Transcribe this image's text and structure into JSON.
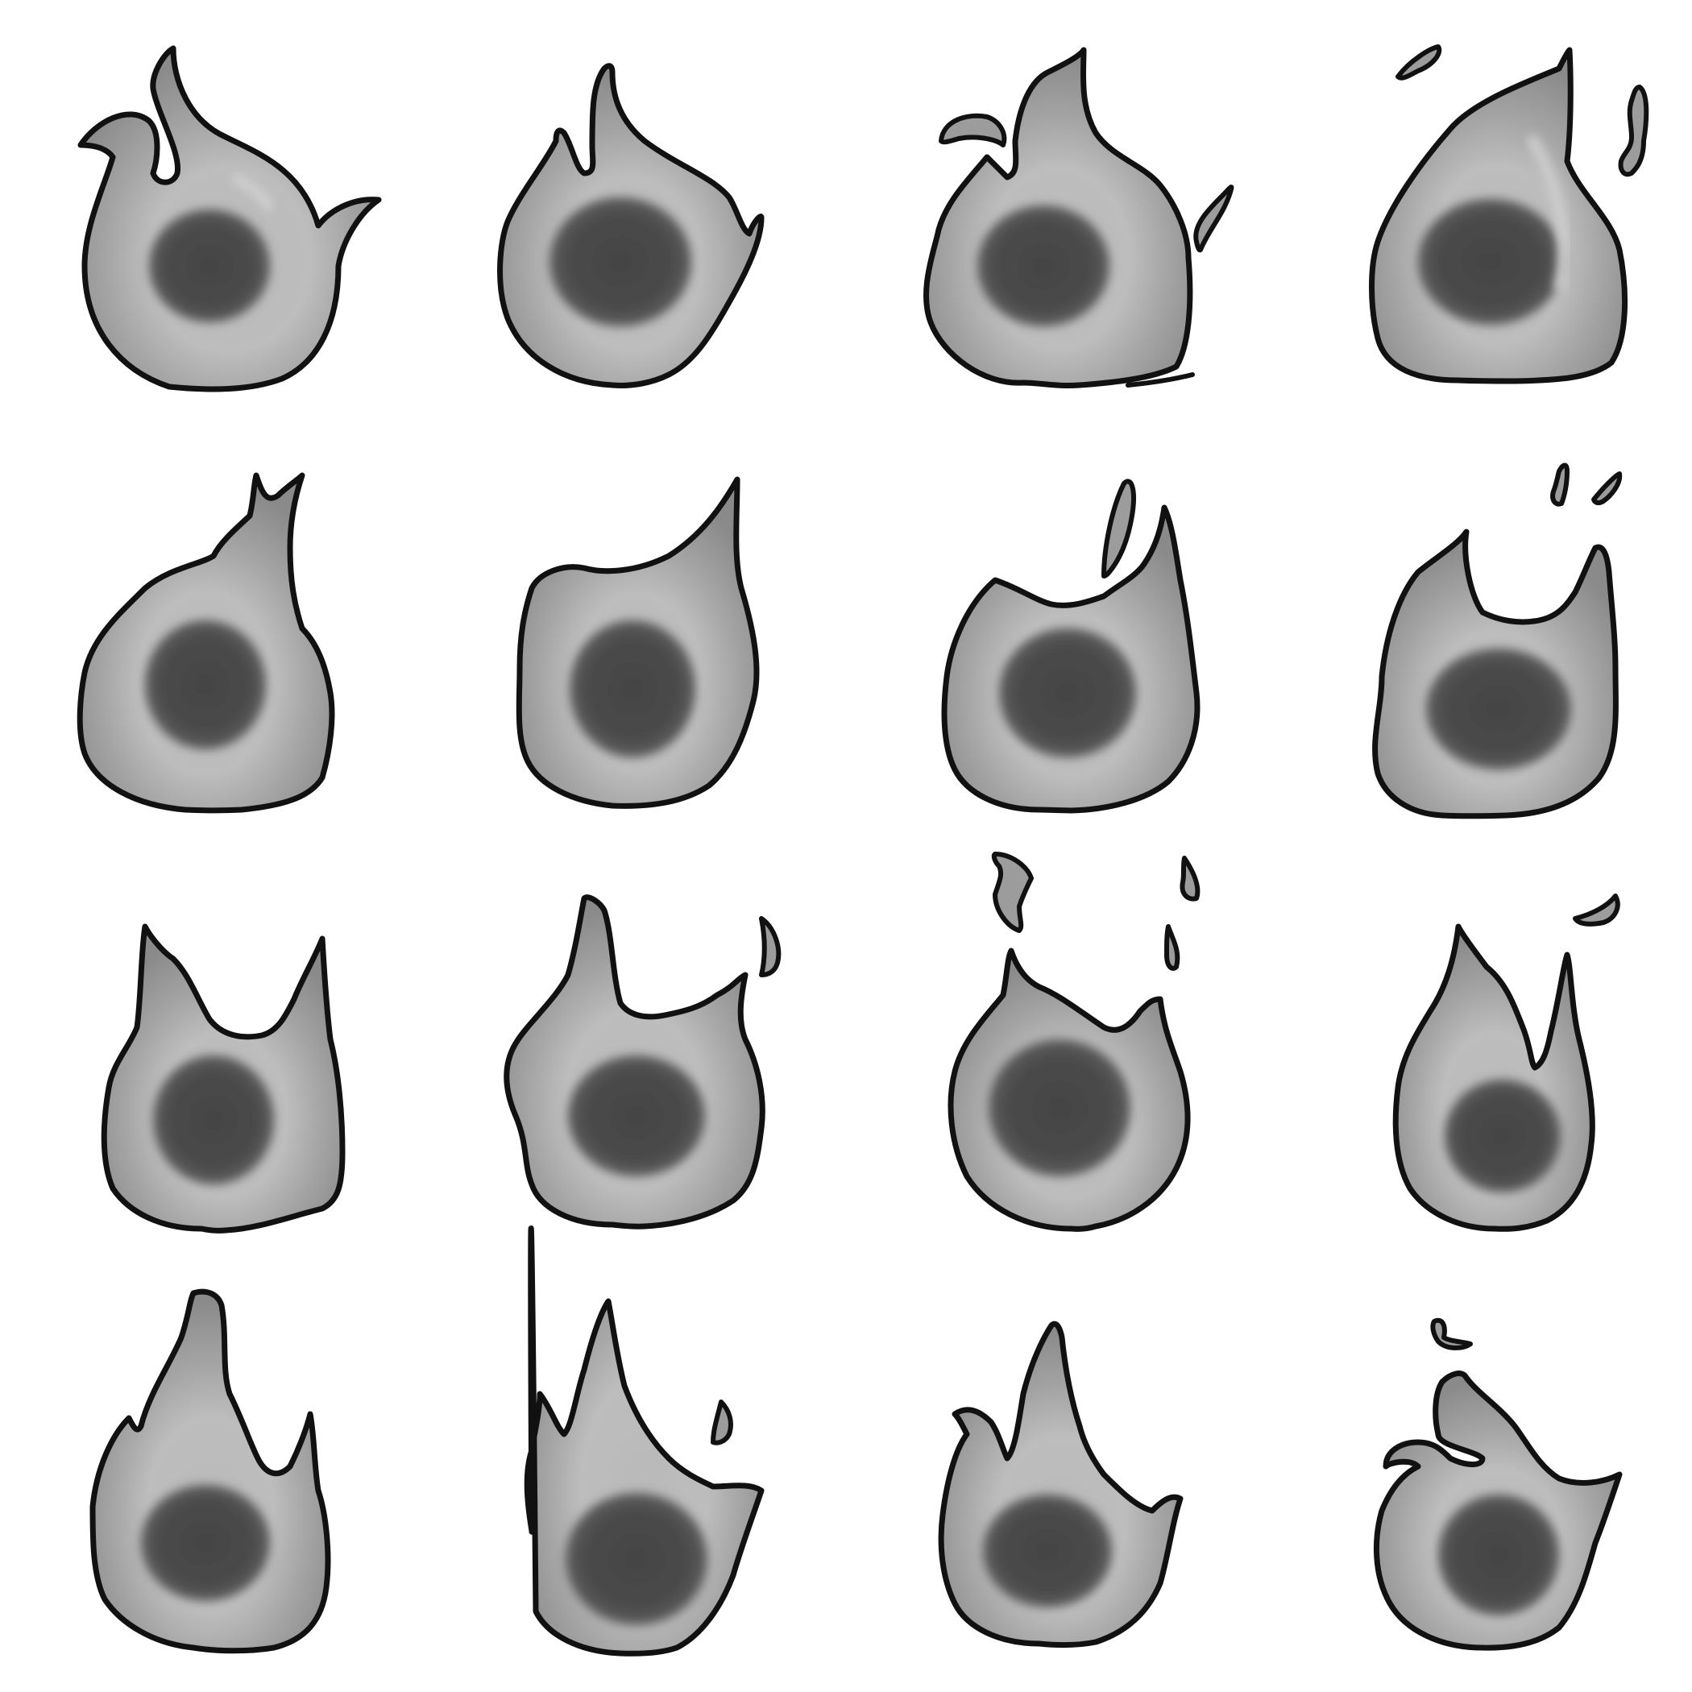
{
  "sprite_sheet": {
    "rows": 4,
    "columns": 4,
    "colors": {
      "background": "#ffffff",
      "outline": "#111111",
      "flame_base": "#9a9a9a",
      "flame_highlight": "#c4c4c4",
      "flame_shadow": "#7e7e7e",
      "core": "#474747"
    },
    "frames": [
      {
        "row": 1,
        "col": 1,
        "variant": "flame-with-left-curl"
      },
      {
        "row": 1,
        "col": 2,
        "variant": "flame-single-tip"
      },
      {
        "row": 1,
        "col": 3,
        "variant": "flame-with-embers"
      },
      {
        "row": 1,
        "col": 4,
        "variant": "flame-teardrop-with-embers"
      },
      {
        "row": 2,
        "col": 1,
        "variant": "flame-leaning-right"
      },
      {
        "row": 2,
        "col": 2,
        "variant": "flame-hooked-right"
      },
      {
        "row": 2,
        "col": 3,
        "variant": "flame-with-falling-shard"
      },
      {
        "row": 2,
        "col": 4,
        "variant": "flame-two-horns-with-embers"
      },
      {
        "row": 3,
        "col": 1,
        "variant": "flame-two-horns"
      },
      {
        "row": 3,
        "col": 2,
        "variant": "flame-with-small-ember"
      },
      {
        "row": 3,
        "col": 3,
        "variant": "flame-round-with-embers"
      },
      {
        "row": 3,
        "col": 4,
        "variant": "flame-split-with-ember"
      },
      {
        "row": 4,
        "col": 1,
        "variant": "flame-tall-tips"
      },
      {
        "row": 4,
        "col": 2,
        "variant": "flame-tall-with-ember"
      },
      {
        "row": 4,
        "col": 3,
        "variant": "flame-left-curl-tall"
      },
      {
        "row": 4,
        "col": 4,
        "variant": "flame-curl-with-ember"
      }
    ]
  }
}
